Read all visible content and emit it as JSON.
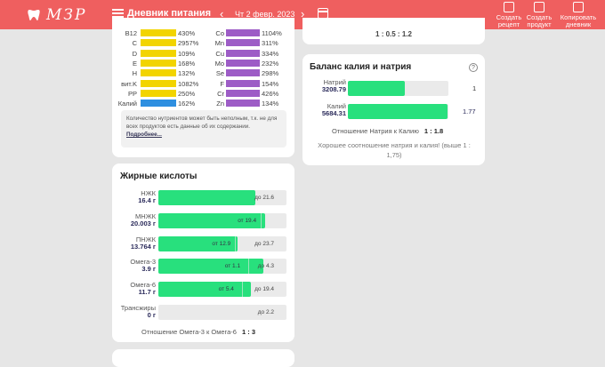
{
  "app": {
    "logo": "МЗР",
    "menu_title": "Дневник питания",
    "date": "Чт 2 февр. 2023"
  },
  "toolbar": {
    "create_recipe": [
      "Создать",
      "рецепт"
    ],
    "create_product": [
      "Создать",
      "продукт"
    ],
    "copy_diary": [
      "Копировать",
      "дневник"
    ]
  },
  "vitamins": [
    {
      "name": "B12",
      "pct": "430%",
      "fill": 1
    },
    {
      "name": "C",
      "pct": "2957%",
      "fill": 1
    },
    {
      "name": "D",
      "pct": "109%",
      "fill": 1
    },
    {
      "name": "E",
      "pct": "168%",
      "fill": 1
    },
    {
      "name": "H",
      "pct": "132%",
      "fill": 1
    },
    {
      "name": "вит.K",
      "pct": "1082%",
      "fill": 1
    },
    {
      "name": "PP",
      "pct": "250%",
      "fill": 1
    },
    {
      "name": "Калий",
      "pct": "162%",
      "fill": 1
    }
  ],
  "minerals": [
    {
      "name": "Co",
      "pct": "1104%",
      "fill": 1
    },
    {
      "name": "Mn",
      "pct": "311%",
      "fill": 1
    },
    {
      "name": "Cu",
      "pct": "334%",
      "fill": 1
    },
    {
      "name": "Mo",
      "pct": "232%",
      "fill": 1
    },
    {
      "name": "Se",
      "pct": "298%",
      "fill": 1
    },
    {
      "name": "F",
      "pct": "154%",
      "fill": 1
    },
    {
      "name": "Cr",
      "pct": "426%",
      "fill": 1
    },
    {
      "name": "Zn",
      "pct": "134%",
      "fill": 1
    }
  ],
  "colors": {
    "vitamin_bar": "#f2d400",
    "mineral_bar": "#9d5cc6",
    "potassium_bar": "#2e8fe0",
    "fat_bar": "#28e07d",
    "header": "#ef5f5f"
  },
  "note": {
    "text": "Количество нутриентов может быть неполным, т.к. не для всех продуктов есть данные об их содержании.",
    "link": "Подробнее..."
  },
  "fatty": {
    "title": "Жирные кислоты",
    "rows": [
      {
        "name": "НЖК",
        "value": "16.4 г",
        "fill": 0.76,
        "min": "",
        "max": "до 21.6",
        "min_pos": null
      },
      {
        "name": "МНЖК",
        "value": "20.003 г",
        "fill": 0.83,
        "min": "от 19.4",
        "max": "",
        "min_pos": 0.8
      },
      {
        "name": "ПНЖК",
        "value": "13.764 г",
        "fill": 0.62,
        "min": "от 12.9",
        "max": "до 23.7",
        "min_pos": 0.6
      },
      {
        "name": "Омега-3",
        "value": "3.9 г",
        "fill": 0.82,
        "min": "от 1.1",
        "max": "до 4.3",
        "min_pos": 0.7
      },
      {
        "name": "Омега-6",
        "value": "11.7 г",
        "fill": 0.72,
        "min": "от 5.4",
        "max": "до 19.4",
        "min_pos": 0.65
      },
      {
        "name": "Трансжиры",
        "value": "0 г",
        "fill": 0,
        "min": "",
        "max": "до 2.2",
        "min_pos": null
      }
    ],
    "ratio_label": "Отношение Омега-3 к Омега-6",
    "ratio_value": "1 : 3"
  },
  "top_right_ratio": "1 : 0.5 : 1.2",
  "potassium_sodium": {
    "title": "Баланс калия и натрия",
    "help": "?",
    "sodium_name": "Натрий",
    "sodium_value": "3208.79",
    "sodium_fill": 0.57,
    "sodium_ratio": "1",
    "potassium_name": "Калий",
    "potassium_value": "5684.31",
    "potassium_fill": 0.99,
    "potassium_ratio": "1.77",
    "ratio_label": "Отношение Натрия к Калию",
    "ratio_value": "1 : 1.8",
    "good_text": "Хорошее соотношение натрия и калия! (выше 1 : 1,75)"
  }
}
